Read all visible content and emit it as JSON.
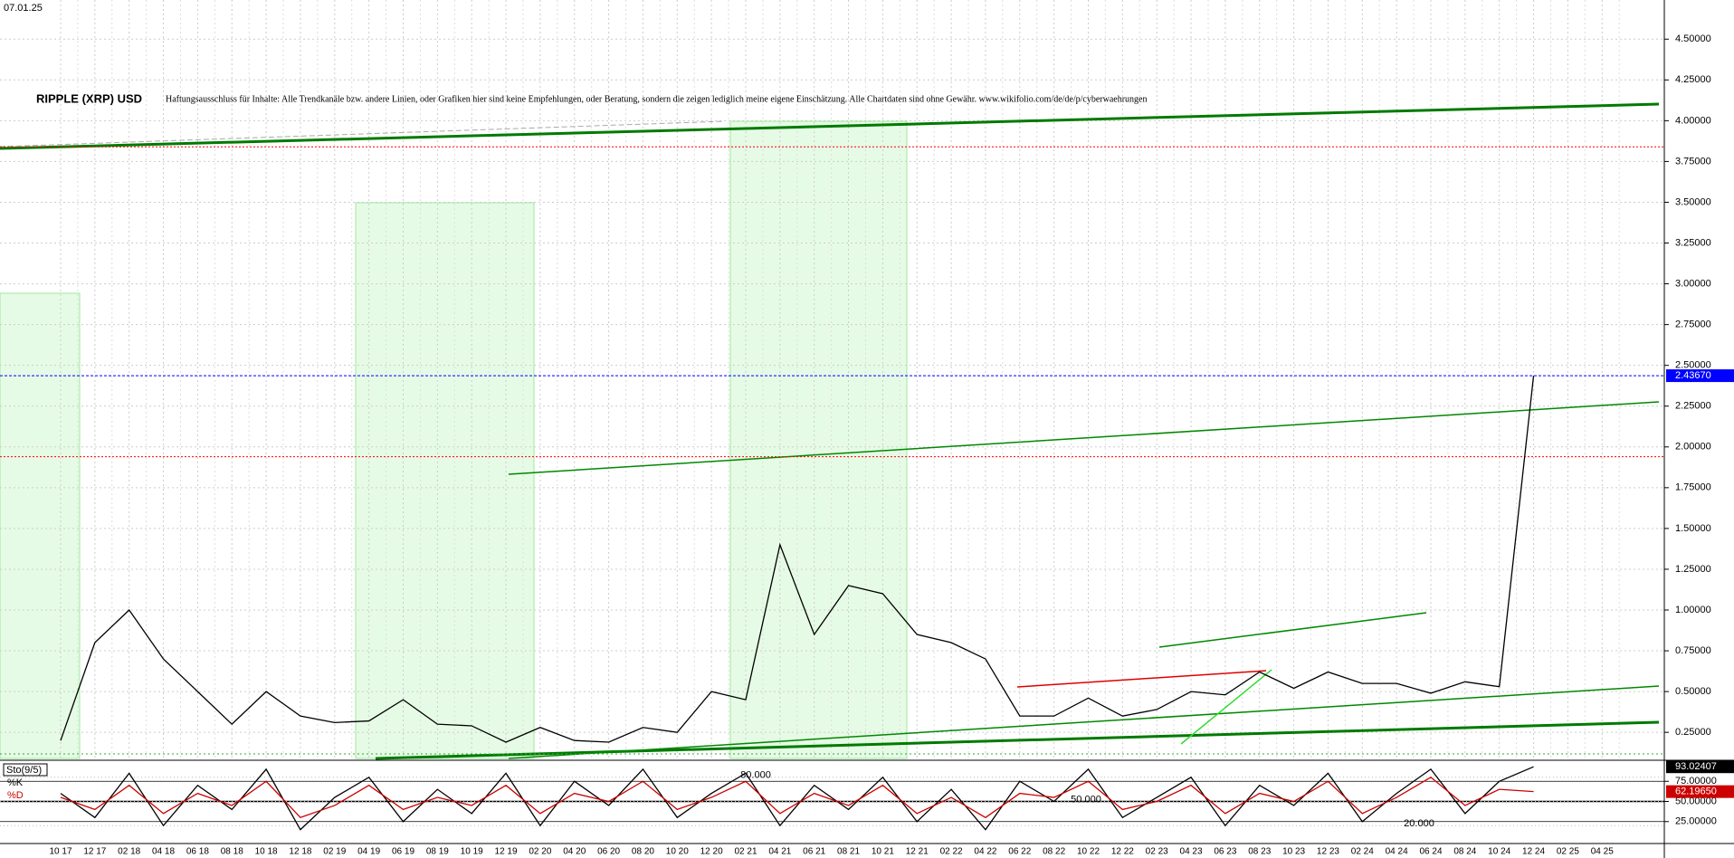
{
  "chart_data": [
    {
      "type": "line",
      "title": "RIPPLE (XRP) USD",
      "subtitle": "Haftungsausschluss für Inhalte: Alle Trendkanäle bzw. andere Linien, oder Grafiken hier sind keine Empfehlungen, oder Beratung, sondern die zeigen lediglich meine eigene Einschätzung. Alle Chartdaten sind ohne Gewähr. www.wikifolio.com/de/de/p/cyberwaehrungen",
      "date": "07.01.25",
      "categories": [
        "10 17",
        "12 17",
        "02 18",
        "04 18",
        "06 18",
        "08 18",
        "10 18",
        "12 18",
        "02 19",
        "04 19",
        "06 19",
        "08 19",
        "10 19",
        "12 19",
        "02 20",
        "04 20",
        "06 20",
        "08 20",
        "10 20",
        "12 20",
        "02 21",
        "04 21",
        "06 21",
        "08 21",
        "10 21",
        "12 21",
        "02 22",
        "04 22",
        "06 22",
        "08 22",
        "10 22",
        "12 22",
        "02 23",
        "04 23",
        "06 23",
        "08 23",
        "10 23",
        "12 23",
        "02 24",
        "04 24",
        "06 24",
        "08 24",
        "10 24",
        "12 24",
        "02 25",
        "04 25"
      ],
      "values": [
        0.2,
        0.8,
        1.0,
        0.7,
        0.5,
        0.3,
        0.5,
        0.35,
        0.31,
        0.32,
        0.45,
        0.3,
        0.29,
        0.19,
        0.28,
        0.2,
        0.19,
        0.28,
        0.25,
        0.5,
        0.45,
        1.4,
        0.85,
        1.15,
        1.1,
        0.85,
        0.8,
        0.7,
        0.35,
        0.35,
        0.46,
        0.35,
        0.39,
        0.5,
        0.48,
        0.62,
        0.52,
        0.62,
        0.55,
        0.55,
        0.49,
        0.56,
        0.53,
        2.4367,
        null,
        null
      ],
      "value_labels": [
        null,
        null,
        null,
        null,
        null,
        null,
        null,
        null,
        null,
        null,
        null,
        null,
        null,
        null,
        null,
        null,
        null,
        null,
        null,
        null,
        null,
        null,
        null,
        null,
        null,
        null,
        null,
        null,
        null,
        null,
        null,
        null,
        null,
        null,
        null,
        null,
        null,
        null,
        null,
        null,
        null,
        null,
        null,
        "2.43670",
        null,
        null
      ],
      "color": "#000000",
      "last_color": "#0000ff",
      "hlines": [
        3.84,
        1.94
      ],
      "hline_color": "#ff0000",
      "ylim": [
        0.09,
        4.74
      ],
      "yticks": [
        {
          "value": 0.25,
          "label": "0.25000"
        },
        {
          "value": 0.5,
          "label": "0.50000"
        },
        {
          "value": 0.75,
          "label": "0.75000"
        },
        {
          "value": 1.0,
          "label": "1.00000"
        },
        {
          "value": 1.25,
          "label": "1.25000"
        },
        {
          "value": 1.5,
          "label": "1.50000"
        },
        {
          "value": 1.75,
          "label": "1.75000"
        },
        {
          "value": 2.0,
          "label": "2.00000"
        },
        {
          "value": 2.25,
          "label": "2.25000"
        },
        {
          "value": 2.5,
          "label": "2.50000"
        },
        {
          "value": 2.75,
          "label": "2.75000"
        },
        {
          "value": 3.0,
          "label": "3.00000"
        },
        {
          "value": 3.25,
          "label": "3.25000"
        },
        {
          "value": 3.5,
          "label": "3.50000"
        },
        {
          "value": 3.75,
          "label": "3.75000"
        },
        {
          "value": 4.0,
          "label": "4.00000"
        },
        {
          "value": 4.25,
          "label": "4.25000"
        },
        {
          "value": 4.5,
          "label": "4.50000"
        }
      ],
      "grid": true
    },
    {
      "type": "line",
      "title": "Sto(9/5)",
      "series": [
        {
          "name": "%K",
          "color": "#000000",
          "values": [
            60,
            30,
            85,
            20,
            70,
            40,
            90,
            15,
            55,
            80,
            25,
            65,
            35,
            85,
            20,
            75,
            45,
            90,
            30,
            60,
            85,
            20,
            70,
            40,
            80,
            25,
            65,
            15,
            75,
            50,
            90,
            30,
            55,
            80,
            20,
            70,
            45,
            85,
            25,
            60,
            90,
            35,
            75,
            93.02407,
            null,
            null
          ],
          "value_labels": [
            null,
            null,
            null,
            null,
            null,
            null,
            null,
            null,
            null,
            null,
            null,
            null,
            null,
            null,
            null,
            null,
            null,
            null,
            null,
            null,
            null,
            null,
            null,
            null,
            null,
            null,
            null,
            null,
            null,
            null,
            null,
            null,
            null,
            null,
            null,
            null,
            null,
            null,
            null,
            null,
            null,
            null,
            null,
            "93.02407",
            null,
            null
          ]
        },
        {
          "name": "%D",
          "color": "#cc0000",
          "values": [
            55,
            40,
            70,
            35,
            60,
            45,
            75,
            30,
            45,
            70,
            40,
            55,
            45,
            70,
            35,
            60,
            50,
            75,
            40,
            55,
            75,
            35,
            60,
            45,
            70,
            35,
            55,
            30,
            60,
            55,
            75,
            40,
            50,
            70,
            35,
            60,
            50,
            75,
            35,
            55,
            80,
            45,
            65,
            62.1965,
            null,
            null
          ],
          "value_labels": [
            null,
            null,
            null,
            null,
            null,
            null,
            null,
            null,
            null,
            null,
            null,
            null,
            null,
            null,
            null,
            null,
            null,
            null,
            null,
            null,
            null,
            null,
            null,
            null,
            null,
            null,
            null,
            null,
            null,
            null,
            null,
            null,
            null,
            null,
            null,
            null,
            null,
            null,
            null,
            null,
            null,
            null,
            null,
            "62.19650",
            null,
            null
          ]
        }
      ],
      "levels": [
        {
          "value": 80,
          "label": "80.000"
        },
        {
          "value": 50,
          "label": "50.000"
        },
        {
          "value": 20,
          "label": "20.000"
        }
      ],
      "ylim": [
        0,
        100
      ],
      "yticks": [
        {
          "value": 25,
          "label": "25.00000"
        },
        {
          "value": 50,
          "label": "50.00000"
        },
        {
          "value": 75,
          "label": "75.00000"
        }
      ]
    }
  ]
}
